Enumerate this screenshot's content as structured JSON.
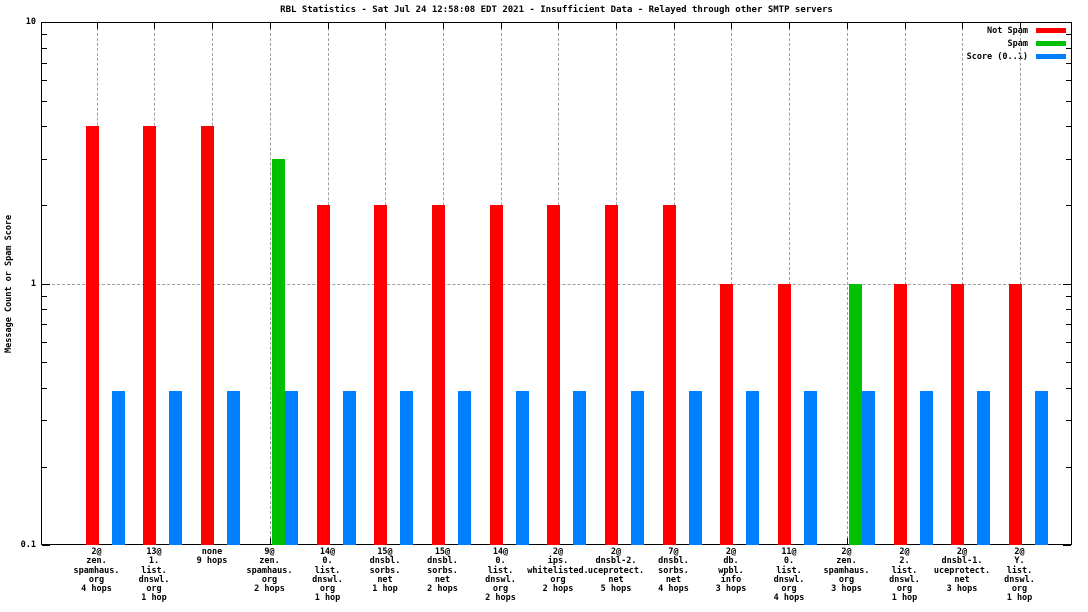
{
  "chart_data": {
    "type": "bar",
    "title": "RBL Statistics - Sat Jul 24 12:58:08 EDT 2021 - Insufficient Data - Relayed through other SMTP servers",
    "xlabel": "",
    "ylabel": "Message Count or Spam Score",
    "yscale": "log",
    "ylim": [
      0.1,
      10
    ],
    "ytick_labels": [
      "10",
      "1",
      "0.1"
    ],
    "ytick_values": [
      10,
      1,
      0.1
    ],
    "grid": true,
    "legend_position": "top-right",
    "colors": {
      "not_spam": "#ff0000",
      "spam": "#00c000",
      "score": "#0080ff",
      "grid": "#9e9e9e",
      "axis": "#000000",
      "background": "#ffffff"
    },
    "series": [
      {
        "name": "Not Spam",
        "color_key": "not_spam"
      },
      {
        "name": "Spam",
        "color_key": "spam"
      },
      {
        "name": "Score (0..1)",
        "color_key": "score"
      }
    ],
    "categories": [
      {
        "label_lines": [
          "2@",
          "zen.",
          "spamhaus.",
          "org",
          "4 hops"
        ]
      },
      {
        "label_lines": [
          "13@",
          "1.",
          "list.",
          "dnswl.",
          "org",
          "1 hop"
        ]
      },
      {
        "label_lines": [
          "none",
          "9 hops"
        ]
      },
      {
        "label_lines": [
          "9@",
          "zen.",
          "spamhaus.",
          "org",
          "2 hops"
        ]
      },
      {
        "label_lines": [
          "14@",
          "0.",
          "list.",
          "dnswl.",
          "org",
          "1 hop"
        ]
      },
      {
        "label_lines": [
          "15@",
          "dnsbl.",
          "sorbs.",
          "net",
          "1 hop"
        ]
      },
      {
        "label_lines": [
          "15@",
          "dnsbl.",
          "sorbs.",
          "net",
          "2 hops"
        ]
      },
      {
        "label_lines": [
          "14@",
          "0.",
          "list.",
          "dnswl.",
          "org",
          "2 hops"
        ]
      },
      {
        "label_lines": [
          "2@",
          "ips.",
          "whitelisted.",
          "org",
          "2 hops"
        ]
      },
      {
        "label_lines": [
          "2@",
          "dnsbl-2.",
          "uceprotect.",
          "net",
          "5 hops"
        ]
      },
      {
        "label_lines": [
          "7@",
          "dnsbl.",
          "sorbs.",
          "net",
          "4 hops"
        ]
      },
      {
        "label_lines": [
          "2@",
          "db.",
          "wpbl.",
          "info",
          "3 hops"
        ]
      },
      {
        "label_lines": [
          "11@",
          "0.",
          "list.",
          "dnswl.",
          "org",
          "4 hops"
        ]
      },
      {
        "label_lines": [
          "2@",
          "zen.",
          "spamhaus.",
          "org",
          "3 hops"
        ]
      },
      {
        "label_lines": [
          "2@",
          "2.",
          "list.",
          "dnswl.",
          "org",
          "1 hop"
        ]
      },
      {
        "label_lines": [
          "2@",
          "dnsbl-1.",
          "uceprotect.",
          "net",
          "3 hops"
        ]
      },
      {
        "label_lines": [
          "2@",
          "Y.",
          "list.",
          "dnswl.",
          "org",
          "1 hop"
        ]
      }
    ],
    "values": {
      "not_spam": [
        4,
        4,
        4,
        0,
        2,
        2,
        2,
        2,
        2,
        2,
        2,
        1,
        1,
        0,
        1,
        1,
        1
      ],
      "spam": [
        0,
        0,
        0,
        3,
        0,
        0,
        0,
        0,
        0,
        0,
        0,
        0,
        0,
        1,
        0,
        0,
        0
      ],
      "score": [
        0.39,
        0.39,
        0.39,
        0.39,
        0.39,
        0.39,
        0.39,
        0.39,
        0.39,
        0.39,
        0.39,
        0.39,
        0.39,
        0.39,
        0.39,
        0.39,
        0.39
      ]
    }
  }
}
